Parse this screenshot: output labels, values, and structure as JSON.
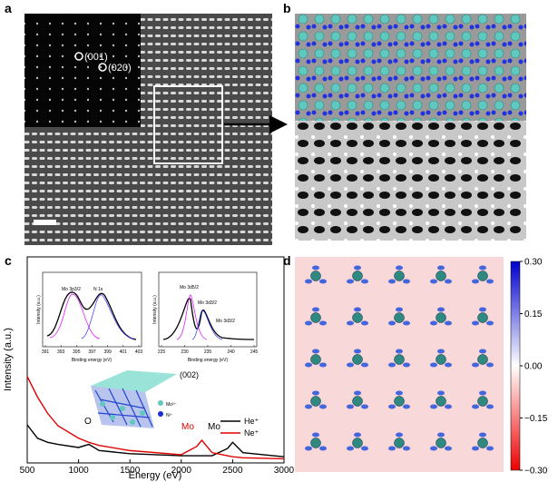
{
  "panels": {
    "a": "a",
    "b": "b",
    "c": "c",
    "d": "d"
  },
  "panel_a": {
    "spots": [
      "(001)",
      "(020)"
    ]
  },
  "chart_data": {
    "type": "line",
    "xlabel": "Energy (eV)",
    "ylabel": "Intensity (a.u.)",
    "x": [
      500,
      600,
      700,
      800,
      1000,
      1100,
      1200,
      1500,
      2000,
      2150,
      2200,
      2300,
      2450,
      2500,
      2600,
      3000
    ],
    "series": [
      {
        "name": "He⁺",
        "color": "#000000",
        "values": [
          18.5,
          12,
          10,
          9,
          7.5,
          9,
          6,
          4.5,
          3.5,
          3.5,
          3.5,
          3.5,
          7,
          10,
          5,
          3
        ]
      },
      {
        "name": "Ne⁺",
        "color": "#e00000",
        "values": [
          42,
          32,
          24,
          18,
          12,
          10,
          8.5,
          6,
          4,
          8,
          11,
          5,
          3.5,
          3,
          2.5,
          2
        ]
      }
    ],
    "xlim": [
      500,
      3000
    ],
    "xticks": [
      500,
      1000,
      1500,
      2000,
      2500,
      3000
    ],
    "ylim": [
      0,
      100
    ],
    "annotations": [
      "O",
      "Mo",
      "Mo",
      "(002)"
    ],
    "inset1": {
      "peaks": [
        "Mo 3p3/2",
        "N 1s"
      ],
      "xticks": [
        391,
        393,
        395,
        397,
        399,
        401,
        403
      ],
      "xlabel": "Binding energy (eV)",
      "ylabel": "Intensity (a.u.)"
    },
    "inset2": {
      "peaks": [
        "Mo 3d5/2",
        "Mo 3d3/2",
        "Mo 3d3/2"
      ],
      "xticks": [
        225,
        230,
        235,
        240,
        245
      ],
      "xlabel": "Binding energy (eV)",
      "ylabel": "Intensity (a.u.)"
    },
    "structure_legend": [
      "Mo²⁺",
      "N³⁻"
    ]
  },
  "colorbar": {
    "clim": [
      -0.3,
      0.3
    ],
    "ticks": [
      {
        "value": 0.3,
        "label": "0.30"
      },
      {
        "value": 0.15,
        "label": "0.15"
      },
      {
        "value": 0,
        "label": "0.00"
      },
      {
        "value": -0.15,
        "label": "−0.15"
      },
      {
        "value": -0.3,
        "label": "−0.30"
      }
    ]
  }
}
